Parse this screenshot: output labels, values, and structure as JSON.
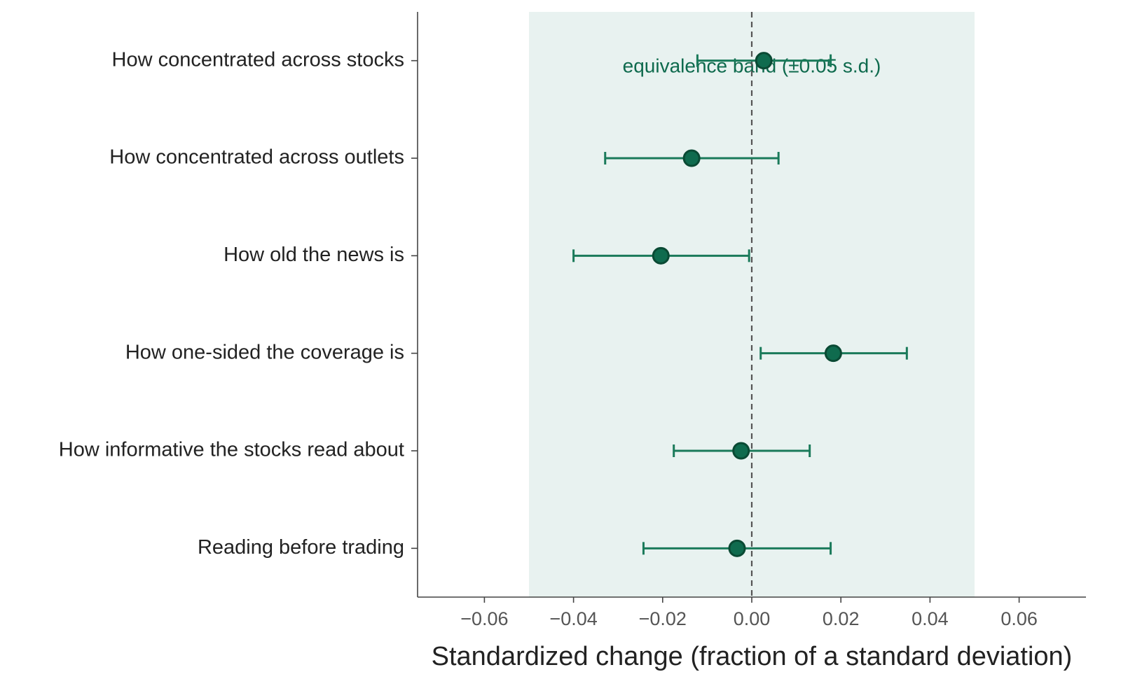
{
  "chart_data": {
    "type": "forest",
    "xlabel": "Standardized change (fraction of a standard deviation)",
    "annotation": "equivalence band (±0.05 s.d.)",
    "band": [
      -0.05,
      0.05
    ],
    "reference_line": 0,
    "categories": [
      "How concentrated across stocks",
      "How concentrated across outlets",
      "How old the news is",
      "How one-sided the coverage is",
      "How informative the stocks read about",
      "Reading before trading"
    ],
    "values": [
      0.0027,
      -0.0135,
      -0.0204,
      0.0183,
      -0.0024,
      -0.0033
    ],
    "lower": [
      -0.0122,
      -0.0329,
      -0.04,
      0.002,
      -0.0175,
      -0.0243
    ],
    "upper": [
      0.0177,
      0.006,
      -0.0006,
      0.0348,
      0.013,
      0.0177
    ],
    "color": "#0f6b4e",
    "band_color": "#e8f2f0",
    "xlim": [
      -0.075,
      0.075
    ],
    "xticks": [
      {
        "value": -0.06,
        "label": "−0.06"
      },
      {
        "value": -0.04,
        "label": "−0.04"
      },
      {
        "value": -0.02,
        "label": "−0.02"
      },
      {
        "value": 0,
        "label": "0.00"
      },
      0.02,
      0.04,
      0.06
    ]
  }
}
